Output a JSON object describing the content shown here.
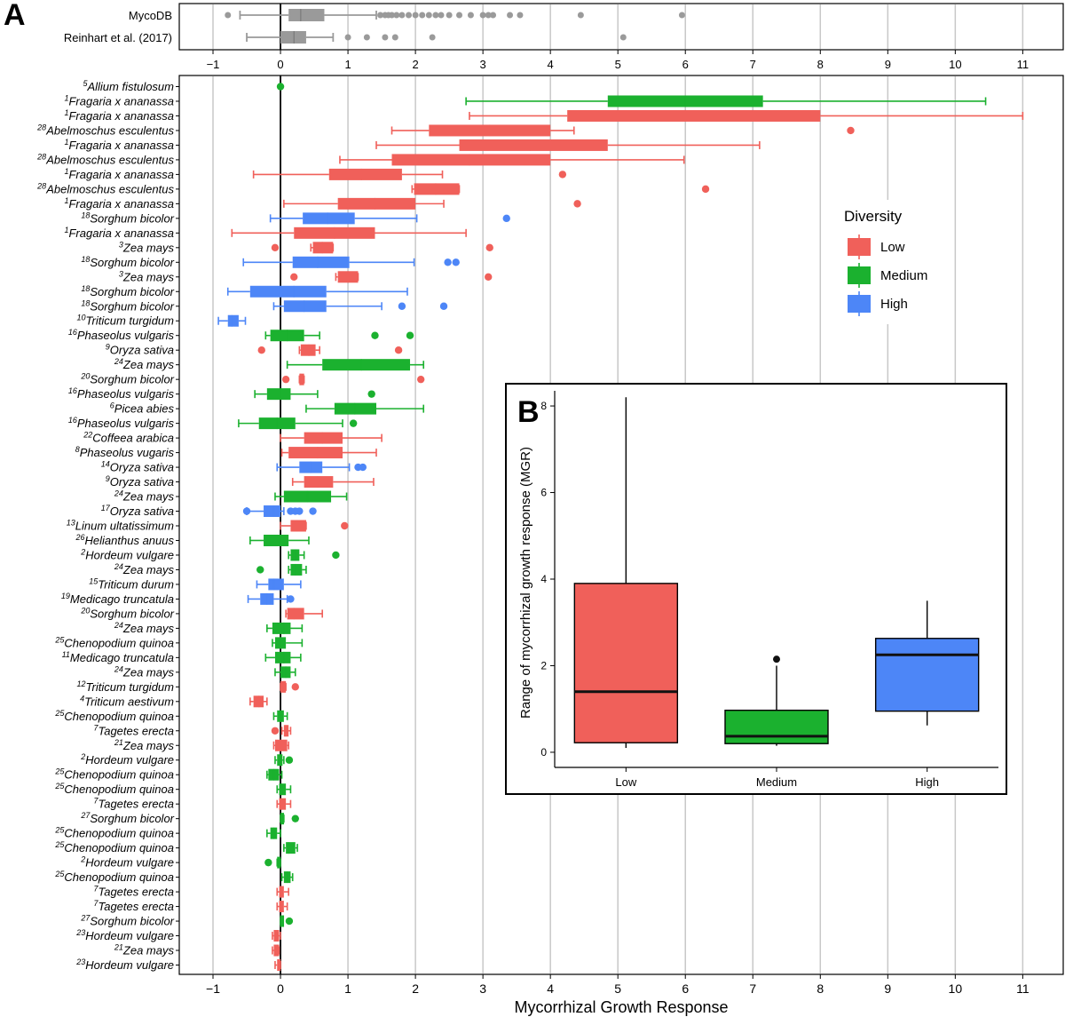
{
  "panel_a_label": "A",
  "panel_b_label": "B",
  "colors": {
    "Low": "#F0605A",
    "Medium": "#1BB12F",
    "High": "#4D86F7",
    "overview": "#9a9a9a",
    "grid": "#c8c8c8"
  },
  "chart_data": [
    {
      "type": "boxplot",
      "id": "overview",
      "title": "",
      "categories": [
        "MycoDB",
        "Reinhart et al. (2017)"
      ],
      "xlim": [
        -1.5,
        11.6
      ],
      "x_ticks": [
        -1,
        0,
        1,
        2,
        3,
        4,
        5,
        6,
        7,
        8,
        9,
        10,
        11
      ],
      "boxes": [
        {
          "label": "MycoDB",
          "whisker_low": -0.6,
          "q1": 0.12,
          "median": 0.3,
          "q3": 0.65,
          "whisker_high": 1.42,
          "outliers": [
            -0.78,
            1.48,
            1.55,
            1.6,
            1.65,
            1.72,
            1.8,
            1.9,
            2.0,
            2.1,
            2.2,
            2.3,
            2.38,
            2.5,
            2.65,
            2.82,
            3.0,
            3.08,
            3.15,
            3.4,
            3.55,
            4.45,
            5.95
          ]
        },
        {
          "label": "Reinhart et al. (2017)",
          "whisker_low": -0.5,
          "q1": 0.0,
          "median": 0.2,
          "q3": 0.38,
          "whisker_high": 0.78,
          "outliers": [
            1.0,
            1.28,
            1.55,
            1.7,
            2.25,
            5.08
          ]
        }
      ]
    },
    {
      "type": "boxplot",
      "id": "per-study",
      "title": "",
      "xlabel": "Mycorrhizal Growth Response",
      "ylabel": "",
      "xlim": [
        -1.5,
        11.6
      ],
      "x_ticks": [
        -1,
        0,
        1,
        2,
        3,
        4,
        5,
        6,
        7,
        8,
        9,
        10,
        11
      ],
      "legend": {
        "title": "Diversity",
        "entries": [
          "Low",
          "Medium",
          "High"
        ],
        "position": "right"
      },
      "series": [
        {
          "ref": "5",
          "name": "Allium fistulosum",
          "div": "Medium",
          "wl": 0.0,
          "q1": 0.0,
          "med": 0.0,
          "q3": 0.0,
          "wh": 0.0,
          "out": []
        },
        {
          "ref": "1",
          "name": "Fragaria x ananassa",
          "div": "Medium",
          "wl": 2.75,
          "q1": 4.85,
          "med": 6.0,
          "q3": 7.15,
          "wh": 10.45,
          "out": []
        },
        {
          "ref": "1",
          "name": "Fragaria x ananassa",
          "div": "Low",
          "wl": 2.8,
          "q1": 4.25,
          "med": 6.0,
          "q3": 8.0,
          "wh": 11.0,
          "out": []
        },
        {
          "ref": "28",
          "name": "Abelmoschus esculentus",
          "div": "Low",
          "wl": 1.65,
          "q1": 2.2,
          "med": 3.1,
          "q3": 4.0,
          "wh": 4.35,
          "out": [
            8.45
          ]
        },
        {
          "ref": "1",
          "name": "Fragaria x ananassa",
          "div": "Low",
          "wl": 1.42,
          "q1": 2.65,
          "med": 3.7,
          "q3": 4.85,
          "wh": 7.1,
          "out": []
        },
        {
          "ref": "28",
          "name": "Abelmoschus esculentus",
          "div": "Low",
          "wl": 0.88,
          "q1": 1.65,
          "med": 2.8,
          "q3": 4.0,
          "wh": 5.98,
          "out": []
        },
        {
          "ref": "1",
          "name": "Fragaria x ananassa",
          "div": "Low",
          "wl": -0.4,
          "q1": 0.72,
          "med": 1.2,
          "q3": 1.8,
          "wh": 2.4,
          "out": [
            4.18
          ]
        },
        {
          "ref": "28",
          "name": "Abelmoschus esculentus",
          "div": "Low",
          "wl": 1.95,
          "q1": 1.98,
          "med": 2.3,
          "q3": 2.65,
          "wh": 2.65,
          "out": [
            6.3
          ]
        },
        {
          "ref": "1",
          "name": "Fragaria x ananassa",
          "div": "Low",
          "wl": 0.05,
          "q1": 0.85,
          "med": 1.4,
          "q3": 2.0,
          "wh": 2.42,
          "out": [
            4.4
          ]
        },
        {
          "ref": "18",
          "name": "Sorghum bicolor",
          "div": "High",
          "wl": -0.15,
          "q1": 0.33,
          "med": 0.7,
          "q3": 1.1,
          "wh": 2.02,
          "out": [
            3.35
          ]
        },
        {
          "ref": "1",
          "name": "Fragaria x ananassa",
          "div": "Low",
          "wl": -0.72,
          "q1": 0.2,
          "med": 0.8,
          "q3": 1.4,
          "wh": 2.75,
          "out": []
        },
        {
          "ref": "3",
          "name": "Zea mays",
          "div": "Low",
          "wl": 0.45,
          "q1": 0.48,
          "med": 0.62,
          "q3": 0.78,
          "wh": 0.78,
          "out": [
            -0.08,
            3.1
          ]
        },
        {
          "ref": "18",
          "name": "Sorghum bicolor",
          "div": "High",
          "wl": -0.55,
          "q1": 0.18,
          "med": 0.55,
          "q3": 1.02,
          "wh": 1.98,
          "out": [
            2.48,
            2.6
          ]
        },
        {
          "ref": "3",
          "name": "Zea mays",
          "div": "Low",
          "wl": 0.82,
          "q1": 0.85,
          "med": 1.0,
          "q3": 1.15,
          "wh": 1.15,
          "out": [
            0.2,
            3.08
          ]
        },
        {
          "ref": "18",
          "name": "Sorghum bicolor",
          "div": "High",
          "wl": -0.78,
          "q1": -0.45,
          "med": 0.2,
          "q3": 0.68,
          "wh": 1.88,
          "out": []
        },
        {
          "ref": "18",
          "name": "Sorghum bicolor",
          "div": "High",
          "wl": -0.1,
          "q1": 0.05,
          "med": 0.35,
          "q3": 0.68,
          "wh": 1.5,
          "out": [
            1.8,
            2.42
          ]
        },
        {
          "ref": "10",
          "name": "Triticum turgidum",
          "div": "High",
          "wl": -0.92,
          "q1": -0.78,
          "med": -0.72,
          "q3": -0.62,
          "wh": -0.52,
          "out": []
        },
        {
          "ref": "16",
          "name": "Phaseolus vulgaris",
          "div": "Medium",
          "wl": -0.22,
          "q1": -0.15,
          "med": 0.1,
          "q3": 0.35,
          "wh": 0.58,
          "out": [
            1.4,
            1.92
          ]
        },
        {
          "ref": "9",
          "name": "Oryza sativa",
          "div": "Low",
          "wl": 0.28,
          "q1": 0.3,
          "med": 0.42,
          "q3": 0.52,
          "wh": 0.58,
          "out": [
            -0.28,
            1.75
          ]
        },
        {
          "ref": "24",
          "name": "Zea mays",
          "div": "Medium",
          "wl": 0.1,
          "q1": 0.62,
          "med": 1.2,
          "q3": 1.92,
          "wh": 2.12,
          "out": []
        },
        {
          "ref": "20",
          "name": "Sorghum bicolor",
          "div": "Low",
          "wl": 0.28,
          "q1": 0.28,
          "med": 0.3,
          "q3": 0.35,
          "wh": 0.35,
          "out": [
            0.08,
            2.08
          ]
        },
        {
          "ref": "16",
          "name": "Phaseolus vulgaris",
          "div": "Medium",
          "wl": -0.38,
          "q1": -0.2,
          "med": 0.0,
          "q3": 0.15,
          "wh": 0.55,
          "out": [
            1.35
          ]
        },
        {
          "ref": "6",
          "name": "Picea abies",
          "div": "Medium",
          "wl": 0.38,
          "q1": 0.8,
          "med": 1.1,
          "q3": 1.42,
          "wh": 2.12,
          "out": []
        },
        {
          "ref": "16",
          "name": "Phaseolus vulgaris",
          "div": "Medium",
          "wl": -0.62,
          "q1": -0.32,
          "med": -0.05,
          "q3": 0.22,
          "wh": 0.92,
          "out": [
            1.08
          ]
        },
        {
          "ref": "22",
          "name": "Coffeea arabica",
          "div": "Low",
          "wl": 0.0,
          "q1": 0.35,
          "med": 0.62,
          "q3": 0.92,
          "wh": 1.5,
          "out": []
        },
        {
          "ref": "8",
          "name": "Phaseolus vugaris",
          "div": "Low",
          "wl": 0.02,
          "q1": 0.12,
          "med": 0.55,
          "q3": 0.92,
          "wh": 1.42,
          "out": []
        },
        {
          "ref": "14",
          "name": "Oryza sativa",
          "div": "High",
          "wl": -0.05,
          "q1": 0.28,
          "med": 0.45,
          "q3": 0.62,
          "wh": 1.02,
          "out": [
            1.15,
            1.22
          ]
        },
        {
          "ref": "9",
          "name": "Oryza sativa",
          "div": "Low",
          "wl": 0.18,
          "q1": 0.35,
          "med": 0.55,
          "q3": 0.78,
          "wh": 1.38,
          "out": []
        },
        {
          "ref": "24",
          "name": "Zea mays",
          "div": "Medium",
          "wl": -0.08,
          "q1": 0.05,
          "med": 0.4,
          "q3": 0.75,
          "wh": 0.98,
          "out": []
        },
        {
          "ref": "17",
          "name": "Oryza sativa",
          "div": "High",
          "wl": -0.5,
          "q1": -0.25,
          "med": -0.1,
          "q3": 0.0,
          "wh": 0.05,
          "out": [
            -0.5,
            0.15,
            0.22,
            0.28,
            0.48
          ]
        },
        {
          "ref": "13",
          "name": "Linum ultatissimum",
          "div": "Low",
          "wl": 0.0,
          "q1": 0.15,
          "med": 0.25,
          "q3": 0.38,
          "wh": 0.38,
          "out": [
            0.95
          ]
        },
        {
          "ref": "26",
          "name": "Helianthus anuus",
          "div": "Medium",
          "wl": -0.45,
          "q1": -0.25,
          "med": 0.0,
          "q3": 0.12,
          "wh": 0.42,
          "out": []
        },
        {
          "ref": "2",
          "name": "Hordeum vulgare",
          "div": "Medium",
          "wl": 0.12,
          "q1": 0.15,
          "med": 0.22,
          "q3": 0.28,
          "wh": 0.35,
          "out": [
            0.82
          ]
        },
        {
          "ref": "24",
          "name": "Zea mays",
          "div": "Medium",
          "wl": 0.12,
          "q1": 0.15,
          "med": 0.22,
          "q3": 0.32,
          "wh": 0.38,
          "out": [
            -0.3
          ]
        },
        {
          "ref": "15",
          "name": "Triticum durum",
          "div": "High",
          "wl": -0.35,
          "q1": -0.18,
          "med": -0.1,
          "q3": 0.05,
          "wh": 0.3,
          "out": []
        },
        {
          "ref": "19",
          "name": "Medicago truncatula",
          "div": "High",
          "wl": -0.48,
          "q1": -0.3,
          "med": -0.2,
          "q3": -0.1,
          "wh": 0.1,
          "out": [
            0.15
          ]
        },
        {
          "ref": "20",
          "name": "Sorghum bicolor",
          "div": "Low",
          "wl": 0.08,
          "q1": 0.1,
          "med": 0.2,
          "q3": 0.35,
          "wh": 0.62,
          "out": []
        },
        {
          "ref": "24",
          "name": "Zea mays",
          "div": "Medium",
          "wl": -0.2,
          "q1": -0.12,
          "med": 0.05,
          "q3": 0.15,
          "wh": 0.32,
          "out": []
        },
        {
          "ref": "25",
          "name": "Chenopodium quinoa",
          "div": "Medium",
          "wl": -0.12,
          "q1": -0.08,
          "med": 0.0,
          "q3": 0.08,
          "wh": 0.32,
          "out": []
        },
        {
          "ref": "11",
          "name": "Medicago truncatula",
          "div": "Medium",
          "wl": -0.22,
          "q1": -0.08,
          "med": 0.05,
          "q3": 0.15,
          "wh": 0.3,
          "out": []
        },
        {
          "ref": "24",
          "name": "Zea mays",
          "div": "Medium",
          "wl": -0.08,
          "q1": 0.0,
          "med": 0.08,
          "q3": 0.15,
          "wh": 0.22,
          "out": []
        },
        {
          "ref": "12",
          "name": "Triticum turgidum",
          "div": "Low",
          "wl": 0.0,
          "q1": 0.0,
          "med": 0.05,
          "q3": 0.08,
          "wh": 0.08,
          "out": [
            0.22
          ]
        },
        {
          "ref": "4",
          "name": "Triticum aestivum",
          "div": "Low",
          "wl": -0.45,
          "q1": -0.4,
          "med": -0.32,
          "q3": -0.25,
          "wh": -0.2,
          "out": []
        },
        {
          "ref": "25",
          "name": "Chenopodium quinoa",
          "div": "Medium",
          "wl": -0.1,
          "q1": -0.05,
          "med": 0.0,
          "q3": 0.05,
          "wh": 0.1,
          "out": []
        },
        {
          "ref": "7",
          "name": "Tagetes erecta",
          "div": "Low",
          "wl": 0.02,
          "q1": 0.05,
          "med": 0.08,
          "q3": 0.12,
          "wh": 0.15,
          "out": [
            -0.08
          ]
        },
        {
          "ref": "21",
          "name": "Zea mays",
          "div": "Low",
          "wl": -0.1,
          "q1": -0.08,
          "med": 0.0,
          "q3": 0.1,
          "wh": 0.12,
          "out": []
        },
        {
          "ref": "2",
          "name": "Hordeum vulgare",
          "div": "Medium",
          "wl": -0.08,
          "q1": -0.05,
          "med": 0.0,
          "q3": 0.03,
          "wh": 0.05,
          "out": [
            0.13
          ]
        },
        {
          "ref": "25",
          "name": "Chenopodium quinoa",
          "div": "Medium",
          "wl": -0.2,
          "q1": -0.18,
          "med": -0.1,
          "q3": -0.02,
          "wh": 0.02,
          "out": []
        },
        {
          "ref": "25",
          "name": "Chenopodium quinoa",
          "div": "Medium",
          "wl": -0.05,
          "q1": -0.02,
          "med": 0.02,
          "q3": 0.08,
          "wh": 0.15,
          "out": []
        },
        {
          "ref": "7",
          "name": "Tagetes erecta",
          "div": "Low",
          "wl": -0.05,
          "q1": -0.02,
          "med": 0.02,
          "q3": 0.08,
          "wh": 0.15,
          "out": []
        },
        {
          "ref": "27",
          "name": "Sorghum bicolor",
          "div": "Medium",
          "wl": 0.0,
          "q1": 0.0,
          "med": 0.02,
          "q3": 0.05,
          "wh": 0.05,
          "out": [
            0.22
          ]
        },
        {
          "ref": "25",
          "name": "Chenopodium quinoa",
          "div": "Medium",
          "wl": -0.2,
          "q1": -0.15,
          "med": -0.1,
          "q3": -0.05,
          "wh": 0.0,
          "out": []
        },
        {
          "ref": "25",
          "name": "Chenopodium quinoa",
          "div": "Medium",
          "wl": 0.05,
          "q1": 0.08,
          "med": 0.12,
          "q3": 0.22,
          "wh": 0.25,
          "out": []
        },
        {
          "ref": "2",
          "name": "Hordeum vulgare",
          "div": "Medium",
          "wl": -0.05,
          "q1": -0.05,
          "med": -0.02,
          "q3": 0.0,
          "wh": 0.0,
          "out": [
            -0.18
          ]
        },
        {
          "ref": "25",
          "name": "Chenopodium quinoa",
          "div": "Medium",
          "wl": 0.02,
          "q1": 0.05,
          "med": 0.1,
          "q3": 0.15,
          "wh": 0.18,
          "out": []
        },
        {
          "ref": "7",
          "name": "Tagetes erecta",
          "div": "Low",
          "wl": -0.05,
          "q1": -0.02,
          "med": 0.02,
          "q3": 0.05,
          "wh": 0.12,
          "out": []
        },
        {
          "ref": "7",
          "name": "Tagetes erecta",
          "div": "Low",
          "wl": -0.05,
          "q1": -0.02,
          "med": 0.0,
          "q3": 0.05,
          "wh": 0.1,
          "out": []
        },
        {
          "ref": "27",
          "name": "Sorghum bicolor",
          "div": "Medium",
          "wl": 0.0,
          "q1": 0.0,
          "med": 0.0,
          "q3": 0.02,
          "wh": 0.02,
          "out": [
            0.13
          ]
        },
        {
          "ref": "23",
          "name": "Hordeum vulgare",
          "div": "Low",
          "wl": -0.12,
          "q1": -0.1,
          "med": -0.05,
          "q3": -0.02,
          "wh": 0.0,
          "out": []
        },
        {
          "ref": "21",
          "name": "Zea mays",
          "div": "Low",
          "wl": -0.12,
          "q1": -0.1,
          "med": -0.05,
          "q3": -0.02,
          "wh": -0.02,
          "out": []
        },
        {
          "ref": "23",
          "name": "Hordeum vulgare",
          "div": "Low",
          "wl": -0.08,
          "q1": -0.05,
          "med": -0.02,
          "q3": 0.0,
          "wh": 0.0,
          "out": []
        }
      ]
    },
    {
      "type": "boxplot",
      "id": "panel-b",
      "title": "",
      "xlabel": "",
      "ylabel": "Range of mycorrhizal growth response (MGR)",
      "ylim": [
        -0.35,
        8.35
      ],
      "y_ticks": [
        0,
        2,
        4,
        6,
        8
      ],
      "categories": [
        "Low",
        "Medium",
        "High"
      ],
      "boxes": [
        {
          "label": "Low",
          "whisker_low": 0.1,
          "q1": 0.22,
          "median": 1.4,
          "q3": 3.9,
          "whisker_high": 8.2,
          "outliers": []
        },
        {
          "label": "Medium",
          "whisker_low": 0.15,
          "q1": 0.2,
          "median": 0.37,
          "q3": 0.97,
          "whisker_high": 2.0,
          "outliers": [
            2.15
          ]
        },
        {
          "label": "High",
          "whisker_low": 0.62,
          "q1": 0.95,
          "median": 2.25,
          "q3": 2.63,
          "whisker_high": 3.5,
          "outliers": []
        }
      ]
    }
  ]
}
